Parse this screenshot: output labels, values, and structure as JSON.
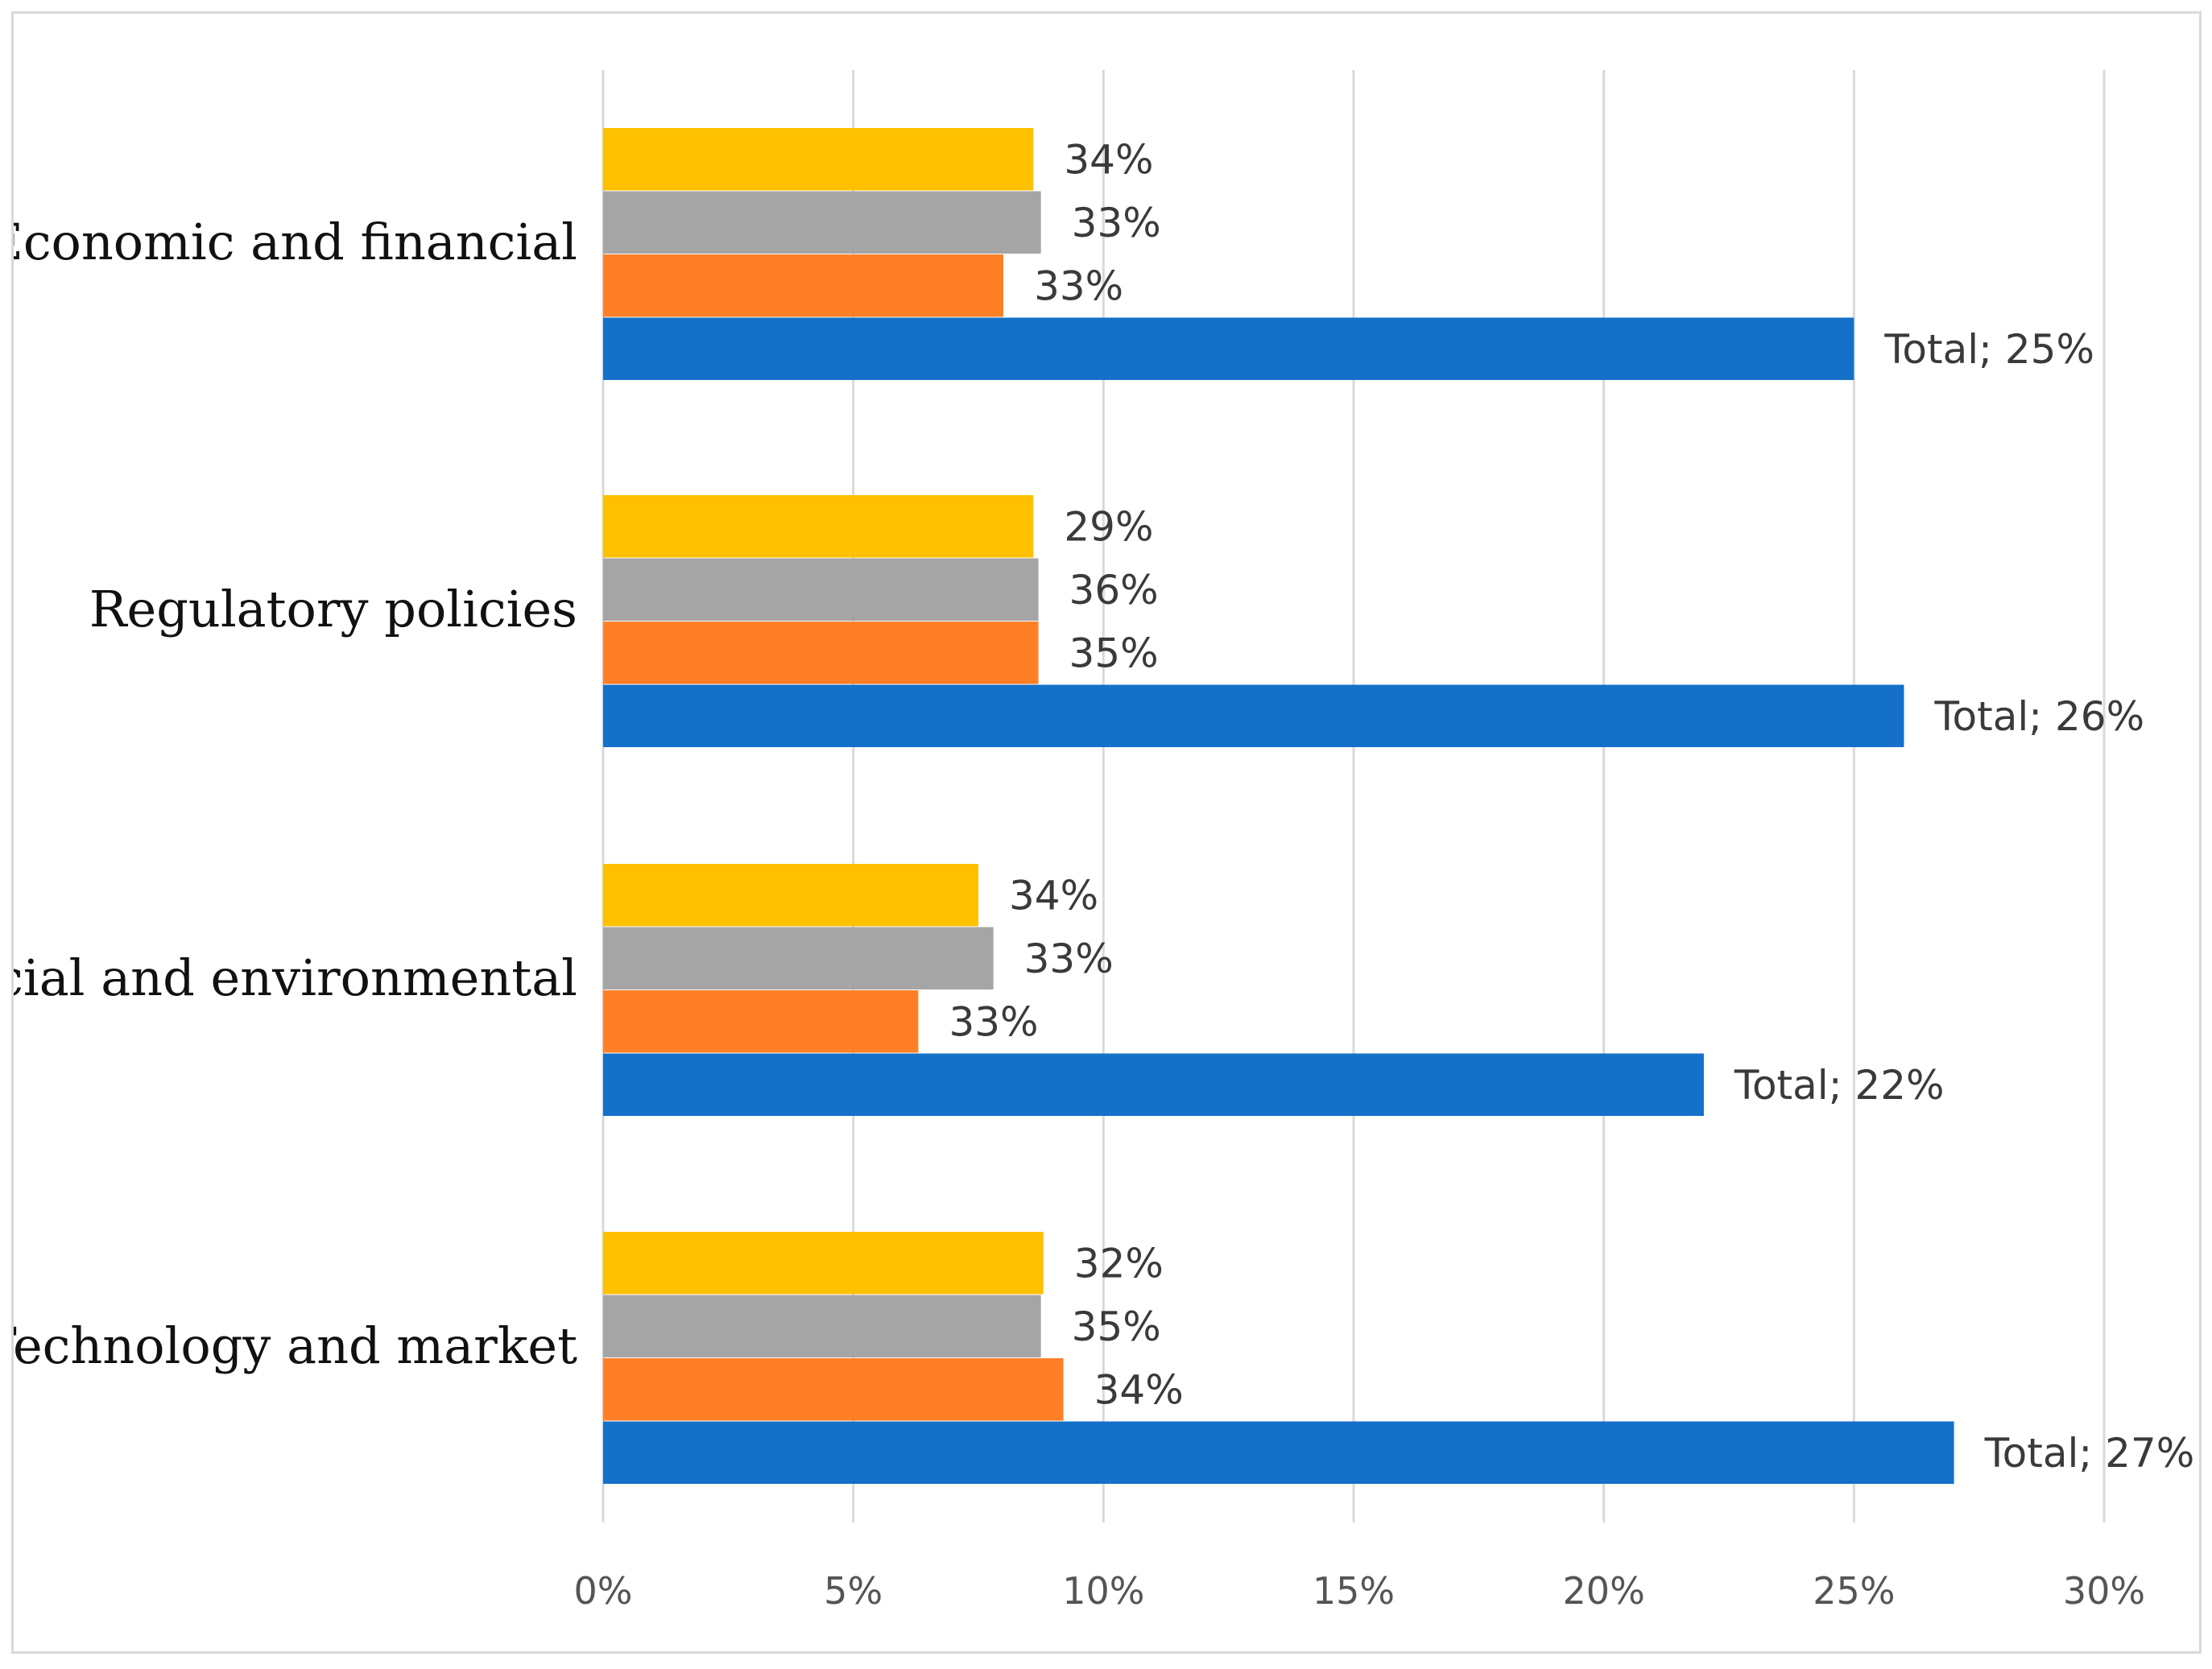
{
  "chart_data": {
    "type": "bar",
    "orientation": "horizontal",
    "title": "",
    "xlabel": "",
    "ylabel": "",
    "xlim": [
      0,
      30
    ],
    "x_ticks": [
      0,
      5,
      10,
      15,
      20,
      25,
      30
    ],
    "x_tick_labels": [
      "0%",
      "5%",
      "10%",
      "15%",
      "20%",
      "25%",
      "30%"
    ],
    "grid": "vertical",
    "legend": "none",
    "categories": [
      "Economic and financial",
      "Regulatory policies",
      "Social and environmental",
      "Technology and market"
    ],
    "series": [
      {
        "color": "#FFC000",
        "values": [
          8.6,
          8.6,
          7.5,
          8.8
        ],
        "labels": [
          "34%",
          "29%",
          "34%",
          "32%"
        ]
      },
      {
        "color": "#A5A5A5",
        "values": [
          8.75,
          8.7,
          7.8,
          8.75
        ],
        "labels": [
          "33%",
          "36%",
          "33%",
          "35%"
        ]
      },
      {
        "color": "#FF7F27",
        "values": [
          8.0,
          8.7,
          6.3,
          9.2
        ],
        "labels": [
          "33%",
          "35%",
          "33%",
          "34%"
        ]
      },
      {
        "color": "#1470C8",
        "values": [
          25,
          26,
          22,
          27
        ],
        "labels": [
          "Total; 25%",
          "Total; 26%",
          "Total; 22%",
          "Total; 27%"
        ]
      }
    ],
    "gridline_color": "#d9d9d9"
  }
}
